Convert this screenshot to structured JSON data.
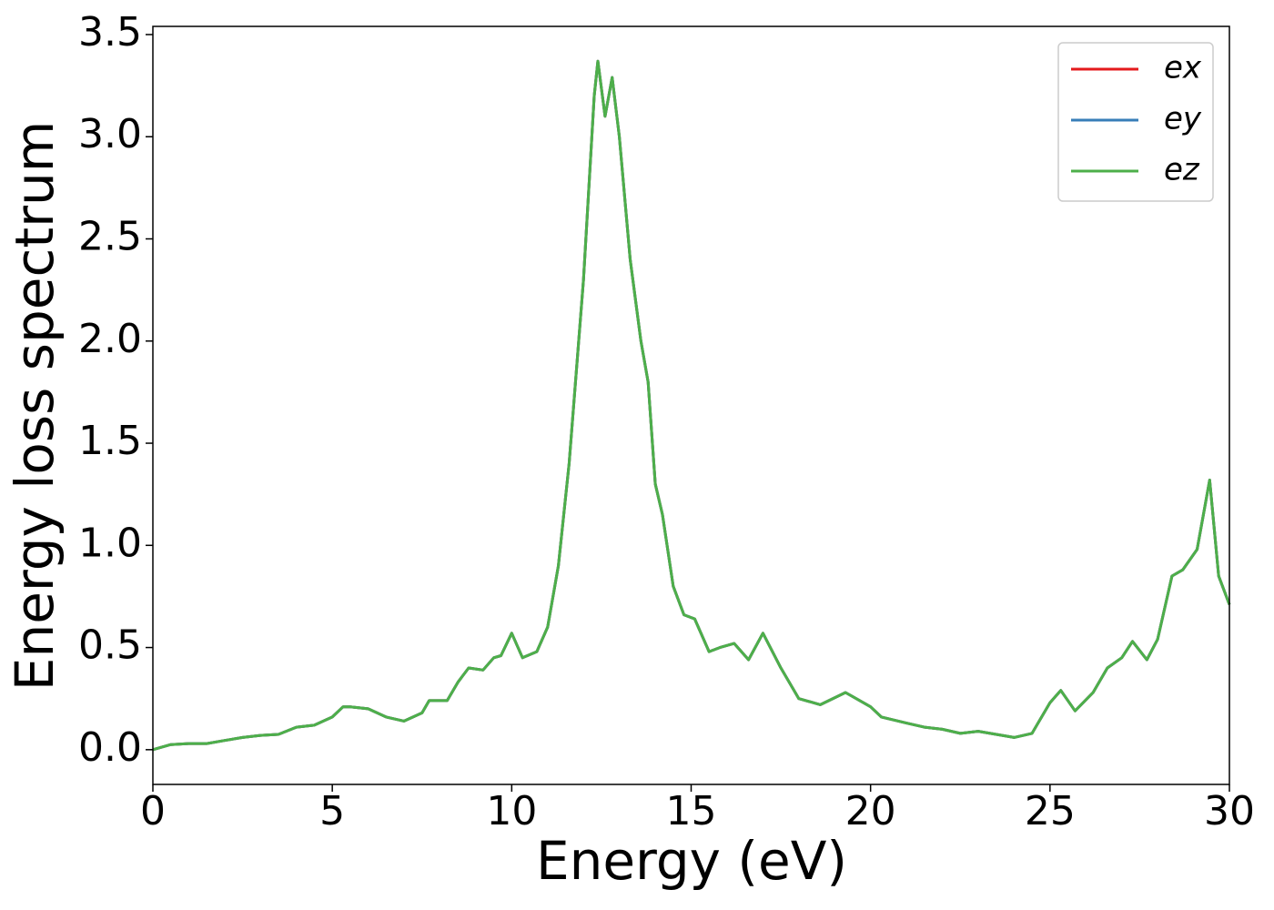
{
  "chart_data": {
    "type": "line",
    "xlabel": "Energy (eV)",
    "ylabel": "Energy loss spectrum",
    "x": [
      0,
      0.5,
      1,
      1.5,
      2,
      2.5,
      3,
      3.5,
      4,
      4.5,
      5,
      5.3,
      5.5,
      6,
      6.5,
      7,
      7.5,
      7.7,
      8.2,
      8.5,
      8.8,
      9.2,
      9.5,
      9.7,
      10,
      10.3,
      10.7,
      11,
      11.3,
      11.6,
      12,
      12.3,
      12.4,
      12.6,
      12.8,
      13,
      13.3,
      13.6,
      13.8,
      14,
      14.2,
      14.5,
      14.8,
      15.1,
      15.5,
      15.8,
      16.2,
      16.6,
      17,
      17.5,
      18,
      18.6,
      19.3,
      20,
      20.3,
      21,
      21.5,
      22,
      22.5,
      23,
      24,
      24.5,
      25,
      25.3,
      25.7,
      26.2,
      26.6,
      27,
      27.3,
      27.7,
      28,
      28.4,
      28.7,
      29.1,
      29.45,
      29.7,
      30
    ],
    "series": [
      {
        "name": "ex",
        "color": "#e41a1c",
        "values": [
          0,
          0.025,
          0.03,
          0.03,
          0.045,
          0.06,
          0.07,
          0.075,
          0.11,
          0.12,
          0.16,
          0.21,
          0.21,
          0.2,
          0.16,
          0.14,
          0.18,
          0.24,
          0.24,
          0.33,
          0.4,
          0.39,
          0.45,
          0.46,
          0.57,
          0.45,
          0.48,
          0.6,
          0.9,
          1.4,
          2.3,
          3.2,
          3.37,
          3.1,
          3.29,
          3.0,
          2.4,
          2.0,
          1.8,
          1.3,
          1.15,
          0.8,
          0.66,
          0.64,
          0.48,
          0.5,
          0.52,
          0.44,
          0.57,
          0.4,
          0.25,
          0.22,
          0.28,
          0.21,
          0.16,
          0.13,
          0.11,
          0.1,
          0.08,
          0.09,
          0.06,
          0.08,
          0.23,
          0.29,
          0.19,
          0.28,
          0.4,
          0.45,
          0.53,
          0.44,
          0.54,
          0.85,
          0.88,
          0.98,
          1.32,
          0.85,
          0.71
        ]
      },
      {
        "name": "ey",
        "color": "#377eb8",
        "values": [
          0,
          0.025,
          0.03,
          0.03,
          0.045,
          0.06,
          0.07,
          0.075,
          0.11,
          0.12,
          0.16,
          0.21,
          0.21,
          0.2,
          0.16,
          0.14,
          0.18,
          0.24,
          0.24,
          0.33,
          0.4,
          0.39,
          0.45,
          0.46,
          0.57,
          0.45,
          0.48,
          0.6,
          0.9,
          1.4,
          2.3,
          3.2,
          3.37,
          3.1,
          3.29,
          3.0,
          2.4,
          2.0,
          1.8,
          1.3,
          1.15,
          0.8,
          0.66,
          0.64,
          0.48,
          0.5,
          0.52,
          0.44,
          0.57,
          0.4,
          0.25,
          0.22,
          0.28,
          0.21,
          0.16,
          0.13,
          0.11,
          0.1,
          0.08,
          0.09,
          0.06,
          0.08,
          0.23,
          0.29,
          0.19,
          0.28,
          0.4,
          0.45,
          0.53,
          0.44,
          0.54,
          0.85,
          0.88,
          0.98,
          1.32,
          0.85,
          0.71
        ]
      },
      {
        "name": "ez",
        "color": "#4daf4a",
        "values": [
          0,
          0.025,
          0.03,
          0.03,
          0.045,
          0.06,
          0.07,
          0.075,
          0.11,
          0.12,
          0.16,
          0.21,
          0.21,
          0.2,
          0.16,
          0.14,
          0.18,
          0.24,
          0.24,
          0.33,
          0.4,
          0.39,
          0.45,
          0.46,
          0.57,
          0.45,
          0.48,
          0.6,
          0.9,
          1.4,
          2.3,
          3.2,
          3.37,
          3.1,
          3.29,
          3.0,
          2.4,
          2.0,
          1.8,
          1.3,
          1.15,
          0.8,
          0.66,
          0.64,
          0.48,
          0.5,
          0.52,
          0.44,
          0.57,
          0.4,
          0.25,
          0.22,
          0.28,
          0.21,
          0.16,
          0.13,
          0.11,
          0.1,
          0.08,
          0.09,
          0.06,
          0.08,
          0.23,
          0.29,
          0.19,
          0.28,
          0.4,
          0.45,
          0.53,
          0.44,
          0.54,
          0.85,
          0.88,
          0.98,
          1.32,
          0.85,
          0.71
        ]
      }
    ],
    "xlim": [
      0,
      30
    ],
    "xticks": [
      0,
      5,
      10,
      15,
      20,
      25,
      30
    ],
    "ylim": [
      -0.17,
      3.54
    ],
    "yticks": [
      {
        "value": 0,
        "label": "0.0"
      },
      {
        "value": 0.5,
        "label": "0.5"
      },
      {
        "value": 1,
        "label": "1.0"
      },
      {
        "value": 1.5,
        "label": "1.5"
      },
      {
        "value": 2,
        "label": "2.0"
      },
      {
        "value": 2.5,
        "label": "2.5"
      },
      {
        "value": 3,
        "label": "3.0"
      },
      {
        "value": 3.5,
        "label": "3.5"
      }
    ],
    "legend": "upper right",
    "grid": false
  }
}
